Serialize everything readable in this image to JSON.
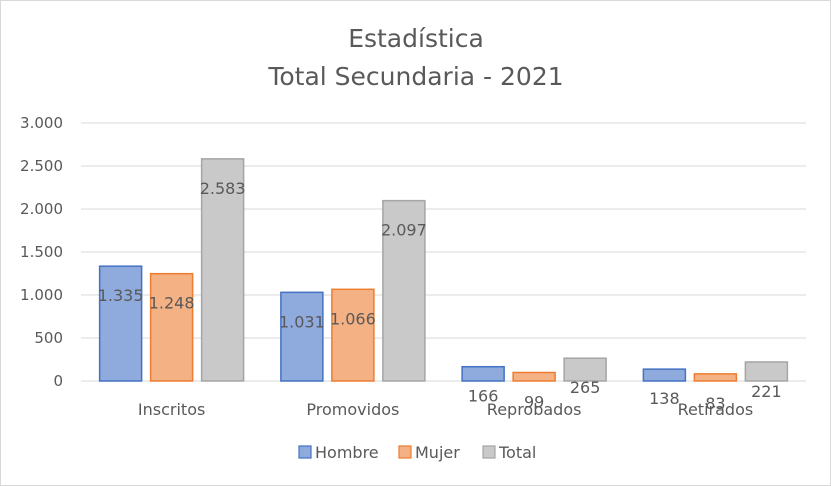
{
  "chart_data": {
    "type": "bar",
    "title": [
      "Estadística",
      "Total Secundaria  - 2021"
    ],
    "categories": [
      "Inscritos",
      "Promovidos",
      "Reprobados",
      "Retirados"
    ],
    "series": [
      {
        "name": "Hombre",
        "values": [
          1335,
          1031,
          166,
          138
        ],
        "labels": [
          "1.335",
          "1.031",
          "166",
          "138"
        ],
        "fill": "#8faadc",
        "stroke": "#4472c4"
      },
      {
        "name": "Mujer",
        "values": [
          1248,
          1066,
          99,
          83
        ],
        "labels": [
          "1.248",
          "1.066",
          "99",
          "83"
        ],
        "fill": "#f4b183",
        "stroke": "#ed7d31"
      },
      {
        "name": "Total",
        "values": [
          2583,
          2097,
          265,
          221
        ],
        "labels": [
          "2.583",
          "2.097",
          "265",
          "221"
        ],
        "fill": "#c9c9c9",
        "stroke": "#a5a5a5"
      }
    ],
    "ylim": [
      0,
      3000
    ],
    "yticks": [
      0,
      500,
      1000,
      1500,
      2000,
      2500,
      3000
    ],
    "ytick_labels": [
      "0",
      "500",
      "1.000",
      "1.500",
      "2.000",
      "2.500",
      "3.000"
    ],
    "grid": true,
    "legend": "bottom"
  }
}
